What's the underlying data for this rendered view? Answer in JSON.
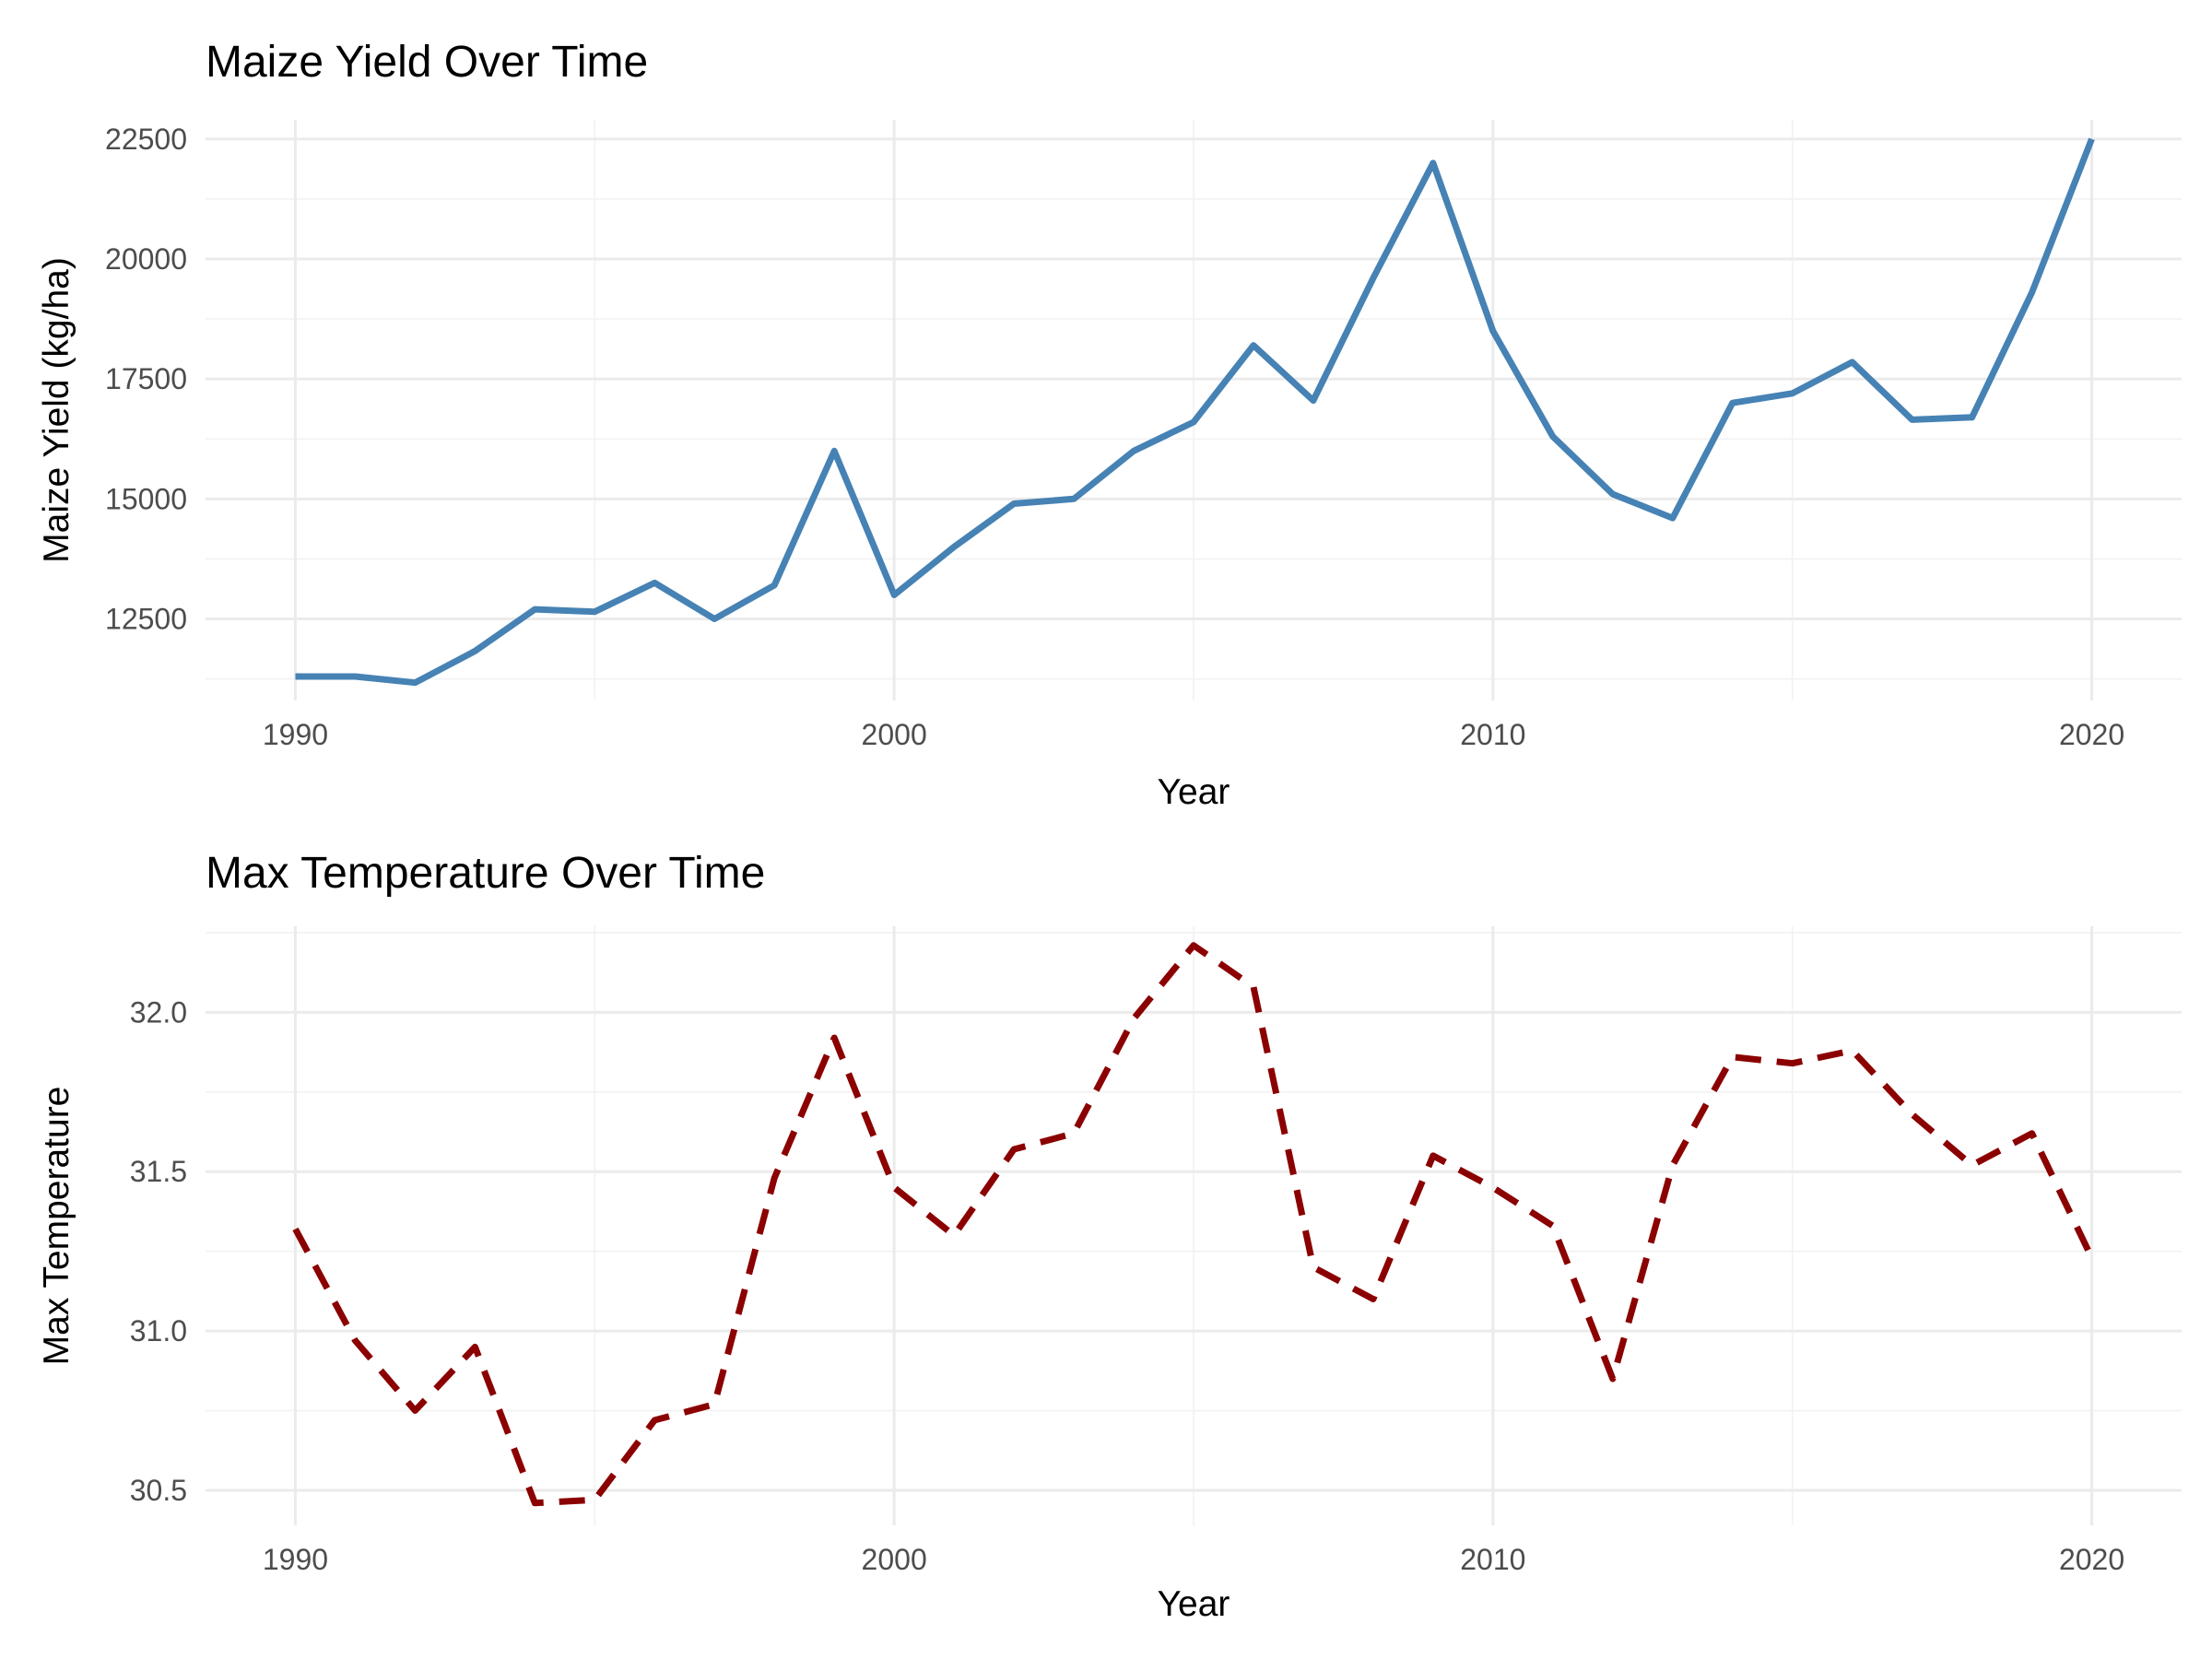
{
  "chart_data": [
    {
      "type": "line",
      "title": "Maize Yield Over Time",
      "xlabel": "Year",
      "ylabel": "Maize Yield (kg/ha)",
      "xlim": [
        1988.5,
        2021.5
      ],
      "ylim": [
        10800,
        22900
      ],
      "x_ticks": [
        1990,
        2000,
        2010,
        2020
      ],
      "x_tick_labels": [
        "1990",
        "2000",
        "2010",
        "2020"
      ],
      "y_ticks": [
        12500,
        15000,
        17500,
        20000,
        22500
      ],
      "y_tick_labels": [
        "12500",
        "15000",
        "17500",
        "20000",
        "22500"
      ],
      "grid": true,
      "series": [
        {
          "color": "#4682B4",
          "line_style": "solid",
          "x": [
            1990,
            1991,
            1992,
            1993,
            1994,
            1995,
            1996,
            1997,
            1998,
            1999,
            2000,
            2001,
            2002,
            2003,
            2004,
            2005,
            2006,
            2007,
            2008,
            2009,
            2010,
            2011,
            2012,
            2013,
            2014,
            2015,
            2016,
            2017,
            2018,
            2019,
            2020
          ],
          "values": [
            11300,
            11300,
            11170,
            11830,
            12700,
            12650,
            13250,
            12500,
            13200,
            16000,
            13000,
            14000,
            14900,
            15000,
            16000,
            16600,
            18200,
            17050,
            19600,
            22000,
            18500,
            16300,
            15100,
            14600,
            17000,
            17200,
            17850,
            16650,
            16700,
            19300,
            22500
          ]
        }
      ]
    },
    {
      "type": "line",
      "title": "Max Temperature Over Time",
      "xlabel": "Year",
      "ylabel": "Max Temperature",
      "xlim": [
        1988.5,
        2021.5
      ],
      "ylim": [
        30.39,
        32.27
      ],
      "x_ticks": [
        1990,
        2000,
        2010,
        2020
      ],
      "x_tick_labels": [
        "1990",
        "2000",
        "2010",
        "2020"
      ],
      "y_ticks": [
        30.5,
        31.0,
        31.5,
        32.0
      ],
      "y_tick_labels": [
        "30.5",
        "31.0",
        "31.5",
        "32.0"
      ],
      "grid": true,
      "series": [
        {
          "color": "#8B0000",
          "line_style": "dashed",
          "x": [
            1990,
            1991,
            1992,
            1993,
            1994,
            1995,
            1996,
            1997,
            1998,
            1999,
            2000,
            2001,
            2002,
            2003,
            2004,
            2005,
            2006,
            2007,
            2008,
            2009,
            2010,
            2011,
            2012,
            2013,
            2014,
            2015,
            2016,
            2017,
            2018,
            2019,
            2020
          ],
          "values": [
            31.32,
            30.97,
            30.75,
            30.95,
            30.46,
            30.47,
            30.72,
            30.77,
            31.48,
            31.92,
            31.45,
            31.3,
            31.57,
            31.62,
            31.98,
            32.21,
            32.08,
            31.2,
            31.1,
            31.55,
            31.45,
            31.33,
            30.85,
            31.52,
            31.86,
            31.84,
            31.88,
            31.68,
            31.52,
            31.62,
            31.23
          ]
        }
      ]
    }
  ]
}
